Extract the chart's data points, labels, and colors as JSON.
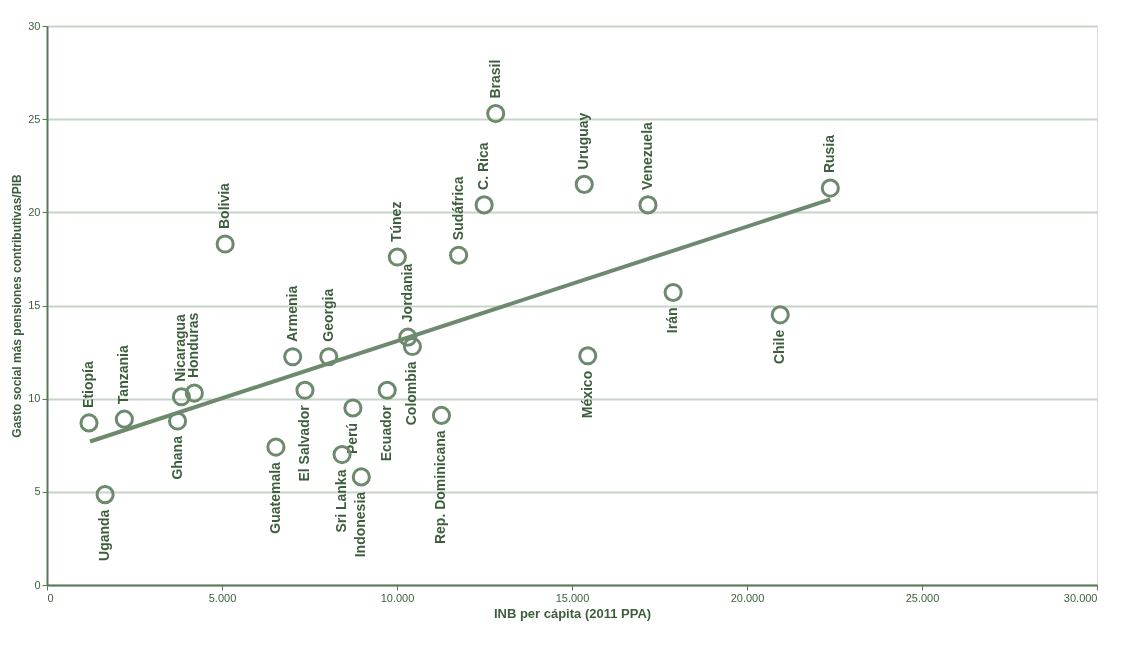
{
  "chart_data": {
    "type": "scatter",
    "xlabel": "INB per cápita (2011 PPA)",
    "ylabel": "Gasto social más pensiones contributivas/PIB",
    "xlim": [
      0,
      30000
    ],
    "ylim": [
      0,
      30
    ],
    "xticks": [
      {
        "value": 0,
        "label": "0"
      },
      {
        "value": 5000,
        "label": "5.000"
      },
      {
        "value": 10000,
        "label": "10.000"
      },
      {
        "value": 15000,
        "label": "15.000"
      },
      {
        "value": 20000,
        "label": "20.000"
      },
      {
        "value": 25000,
        "label": "25.000"
      },
      {
        "value": 30000,
        "label": "30.000"
      }
    ],
    "yticks": [
      0,
      5,
      10,
      15,
      20,
      25,
      30
    ],
    "grid": "y",
    "series": [
      {
        "color": "#6e8a6e",
        "x": [
          1200,
          1660,
          2210,
          3730,
          3840,
          4210,
          5090,
          6540,
          7020,
          7370,
          8050,
          8430,
          8740,
          8980,
          9720,
          10010,
          10310,
          10440,
          11270,
          11760,
          12490,
          12820,
          15350,
          15450,
          17170,
          17890,
          20950,
          22380
        ],
        "values": [
          8.7,
          4.85,
          8.9,
          8.8,
          10.1,
          10.3,
          18.3,
          7.4,
          12.25,
          10.45,
          12.25,
          7.0,
          9.5,
          5.8,
          10.45,
          17.6,
          13.3,
          12.8,
          9.1,
          17.7,
          20.4,
          25.3,
          21.5,
          12.3,
          20.4,
          15.7,
          14.5,
          21.3
        ]
      },
      {
        "type": "line",
        "color": "#6e8a6e",
        "x": [
          1230,
          22380
        ],
        "values": [
          7.7,
          20.7
        ]
      }
    ],
    "annotations": [
      {
        "text": "Etiopía",
        "x": 1200,
        "y": 8.7
      },
      {
        "text": "Uganda",
        "x": 1660,
        "y": 4.85
      },
      {
        "text": "Tanzania",
        "x": 2210,
        "y": 8.9
      },
      {
        "text": "Ghana",
        "x": 3730,
        "y": 8.8
      },
      {
        "text": "Nicaragua",
        "x": 3840,
        "y": 10.1
      },
      {
        "text": "Honduras",
        "x": 4210,
        "y": 10.3
      },
      {
        "text": "Bolivia",
        "x": 5090,
        "y": 18.3
      },
      {
        "text": "Guatemala",
        "x": 6540,
        "y": 7.4
      },
      {
        "text": "Armenia",
        "x": 7020,
        "y": 12.25
      },
      {
        "text": "El Salvador",
        "x": 7370,
        "y": 10.45
      },
      {
        "text": "Georgia",
        "x": 8050,
        "y": 12.25
      },
      {
        "text": "Sri Lanka",
        "x": 8430,
        "y": 7.0
      },
      {
        "text": "Perú",
        "x": 8740,
        "y": 9.5
      },
      {
        "text": "Indonesia",
        "x": 8980,
        "y": 5.8
      },
      {
        "text": "Ecuador",
        "x": 9720,
        "y": 10.45
      },
      {
        "text": "Túnez",
        "x": 10010,
        "y": 17.6
      },
      {
        "text": "Jordania",
        "x": 10310,
        "y": 13.3
      },
      {
        "text": "Colombia",
        "x": 10440,
        "y": 12.8
      },
      {
        "text": "Rep. Dominicana",
        "x": 11270,
        "y": 9.1
      },
      {
        "text": "Sudáfrica",
        "x": 11760,
        "y": 17.7
      },
      {
        "text": "C. Rica",
        "x": 12490,
        "y": 20.4
      },
      {
        "text": "Brasil",
        "x": 12820,
        "y": 25.3
      },
      {
        "text": "Uruguay",
        "x": 15350,
        "y": 21.5
      },
      {
        "text": "México",
        "x": 15450,
        "y": 12.3
      },
      {
        "text": "Venezuela",
        "x": 17170,
        "y": 20.4
      },
      {
        "text": "Irán",
        "x": 17890,
        "y": 15.7
      },
      {
        "text": "Chile",
        "x": 20950,
        "y": 14.5
      },
      {
        "text": "Rusia",
        "x": 22380,
        "y": 21.3
      }
    ]
  }
}
